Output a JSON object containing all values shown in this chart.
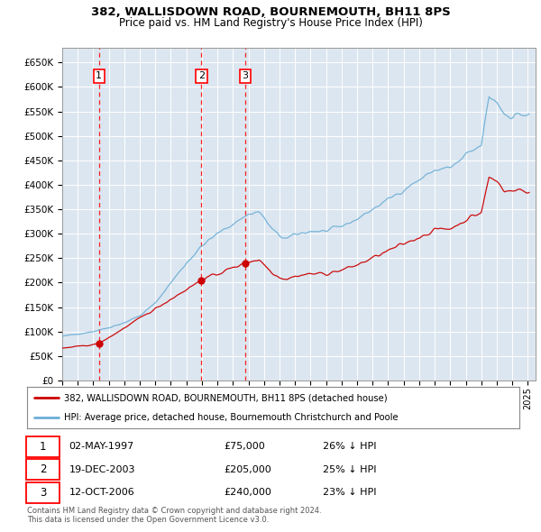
{
  "title1": "382, WALLISDOWN ROAD, BOURNEMOUTH, BH11 8PS",
  "title2": "Price paid vs. HM Land Registry's House Price Index (HPI)",
  "plot_bg_color": "#dce6f0",
  "transactions": [
    {
      "num": 1,
      "date": "02-MAY-1997",
      "price": 75000,
      "pct": "26% ↓ HPI",
      "year": 1997.37
    },
    {
      "num": 2,
      "date": "19-DEC-2003",
      "price": 205000,
      "pct": "25% ↓ HPI",
      "year": 2003.96
    },
    {
      "num": 3,
      "date": "12-OCT-2006",
      "price": 240000,
      "pct": "23% ↓ HPI",
      "year": 2006.79
    }
  ],
  "legend1": "382, WALLISDOWN ROAD, BOURNEMOUTH, BH11 8PS (detached house)",
  "legend2": "HPI: Average price, detached house, Bournemouth Christchurch and Poole",
  "footer1": "Contains HM Land Registry data © Crown copyright and database right 2024.",
  "footer2": "This data is licensed under the Open Government Licence v3.0.",
  "yticks": [
    0,
    50000,
    100000,
    150000,
    200000,
    250000,
    300000,
    350000,
    400000,
    450000,
    500000,
    550000,
    600000,
    650000
  ],
  "ylim": [
    0,
    680000
  ],
  "xlim_start": 1995.0,
  "xlim_end": 2025.5,
  "hpi_color": "#6baed6",
  "pp_color": "#cc0000"
}
